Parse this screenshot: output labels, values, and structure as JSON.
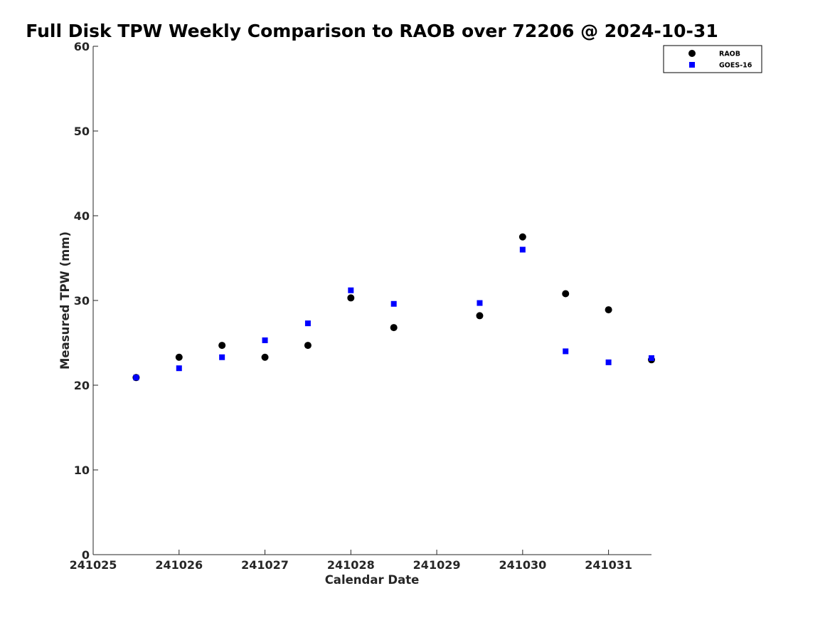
{
  "chart_data": {
    "type": "scatter",
    "title": "Full Disk TPW Weekly Comparison to RAOB over 72206 @ 2024-10-31",
    "xlabel": "Calendar Date",
    "ylabel": "Measured TPW (mm)",
    "xlim": [
      241025,
      241031.5
    ],
    "ylim": [
      0,
      60
    ],
    "x_ticks": [
      241025,
      241026,
      241027,
      241028,
      241029,
      241030,
      241031
    ],
    "x_tick_labels": [
      "241025",
      "241026",
      "241027",
      "241028",
      "241029",
      "241030",
      "241031"
    ],
    "y_ticks": [
      0,
      10,
      20,
      30,
      40,
      50,
      60
    ],
    "y_tick_labels": [
      "0",
      "10",
      "20",
      "30",
      "40",
      "50",
      "60"
    ],
    "grid": false,
    "legend_position": "top-right",
    "series": [
      {
        "name": "RAOB",
        "marker": "circle",
        "color": "#000000",
        "points": [
          {
            "x": 241025.5,
            "y": 20.9
          },
          {
            "x": 241026.0,
            "y": 23.3
          },
          {
            "x": 241026.5,
            "y": 24.7
          },
          {
            "x": 241027.0,
            "y": 23.3
          },
          {
            "x": 241027.5,
            "y": 24.7
          },
          {
            "x": 241028.0,
            "y": 30.3
          },
          {
            "x": 241028.5,
            "y": 26.8
          },
          {
            "x": 241029.5,
            "y": 28.2
          },
          {
            "x": 241030.0,
            "y": 37.5
          },
          {
            "x": 241030.5,
            "y": 30.8
          },
          {
            "x": 241031.0,
            "y": 28.9
          },
          {
            "x": 241031.5,
            "y": 23.0
          }
        ]
      },
      {
        "name": "GOES-16",
        "marker": "square",
        "color": "#0000ff",
        "points": [
          {
            "x": 241025.5,
            "y": 20.9
          },
          {
            "x": 241026.0,
            "y": 22.0
          },
          {
            "x": 241026.5,
            "y": 23.3
          },
          {
            "x": 241027.0,
            "y": 25.3
          },
          {
            "x": 241027.5,
            "y": 27.3
          },
          {
            "x": 241028.0,
            "y": 31.2
          },
          {
            "x": 241028.5,
            "y": 29.6
          },
          {
            "x": 241029.5,
            "y": 29.7
          },
          {
            "x": 241030.0,
            "y": 36.0
          },
          {
            "x": 241030.5,
            "y": 24.0
          },
          {
            "x": 241031.0,
            "y": 22.7
          },
          {
            "x": 241031.5,
            "y": 23.2
          }
        ]
      }
    ]
  }
}
